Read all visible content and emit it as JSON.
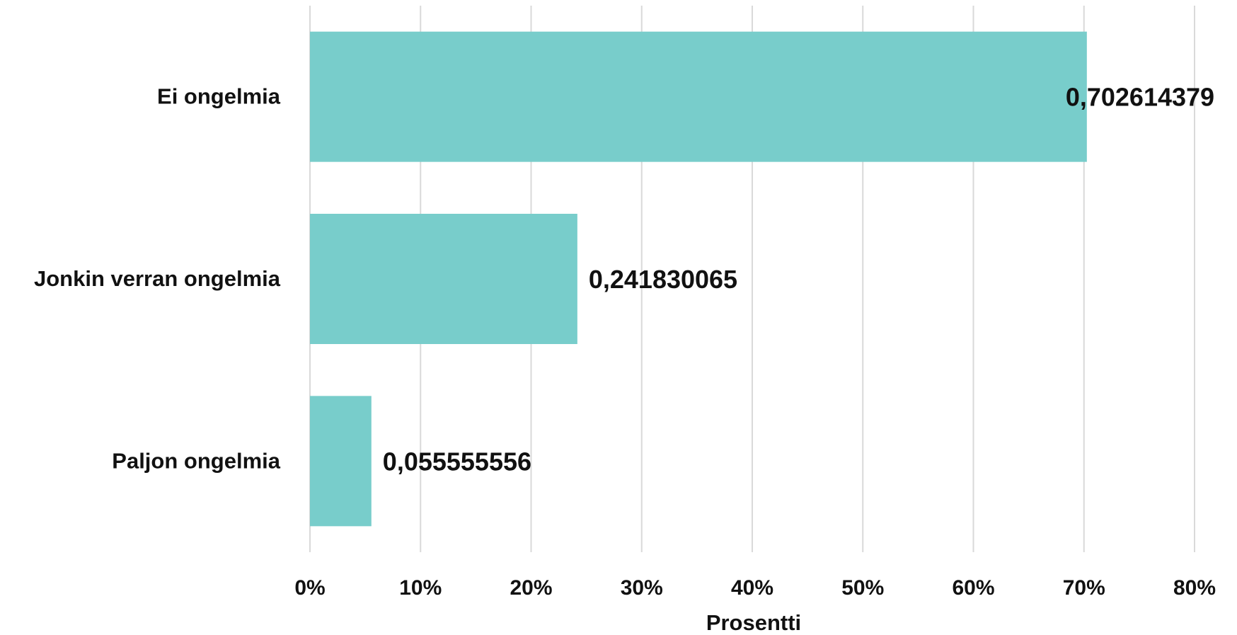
{
  "chart_data": {
    "type": "bar",
    "orientation": "horizontal",
    "title": "",
    "xlabel": "Prosentti",
    "ylabel": "",
    "categories": [
      "Ei ongelmia",
      "Jonkin verran ongelmia",
      "Paljon ongelmia"
    ],
    "values": [
      0.702614379,
      0.241830065,
      0.055555556
    ],
    "data_labels": [
      "0,702614379",
      "0,241830065",
      "0,055555556"
    ],
    "xlim": [
      0,
      0.8
    ],
    "x_ticks": [
      0,
      0.1,
      0.2,
      0.3,
      0.4,
      0.5,
      0.6,
      0.7,
      0.8
    ],
    "x_tick_labels": [
      "0%",
      "10%",
      "20%",
      "30%",
      "40%",
      "50%",
      "60%",
      "70%",
      "80%"
    ],
    "grid": "vertical",
    "legend": "none",
    "bar_color": "#78cdcb",
    "grid_color": "#d9d9d9"
  }
}
